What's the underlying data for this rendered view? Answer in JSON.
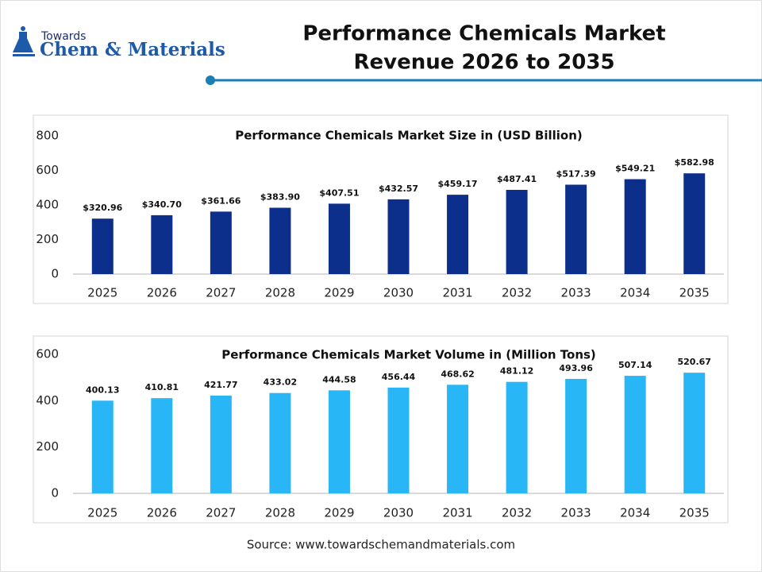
{
  "header": {
    "logo_small": "Towards",
    "logo_main": "Chem & Materials",
    "title_lines": [
      "Performance Chemicals Market",
      "Revenue 2026 to 2035"
    ]
  },
  "chart_data": [
    {
      "type": "bar",
      "title": "Performance Chemicals Market Size in (USD Billion)",
      "categories": [
        "2025",
        "2026",
        "2027",
        "2028",
        "2029",
        "2030",
        "2031",
        "2032",
        "2033",
        "2034",
        "2035"
      ],
      "values": [
        320.96,
        340.7,
        361.66,
        383.9,
        407.51,
        432.57,
        459.17,
        487.41,
        517.39,
        549.21,
        582.98
      ],
      "value_labels": [
        "$320.96",
        "$340.70",
        "$361.66",
        "$383.90",
        "$407.51",
        "$432.57",
        "$459.17",
        "$487.41",
        "$517.39",
        "$549.21",
        "$582.98"
      ],
      "color": "#0d2f8c",
      "ylim": [
        0,
        800
      ],
      "yticks": [
        0,
        200,
        400,
        600,
        800
      ],
      "grid": false
    },
    {
      "type": "bar",
      "title": "Performance Chemicals Market Volume in (Million Tons)",
      "categories": [
        "2025",
        "2026",
        "2027",
        "2028",
        "2029",
        "2030",
        "2031",
        "2032",
        "2033",
        "2034",
        "2035"
      ],
      "values": [
        400.13,
        410.81,
        421.77,
        433.02,
        444.58,
        456.44,
        468.62,
        481.12,
        493.96,
        507.14,
        520.67
      ],
      "color": "#29b6f6",
      "ylim": [
        0,
        600
      ],
      "yticks": [
        0,
        200,
        400,
        600
      ],
      "grid": false
    }
  ],
  "source": "Source: www.towardschemandmaterials.com"
}
